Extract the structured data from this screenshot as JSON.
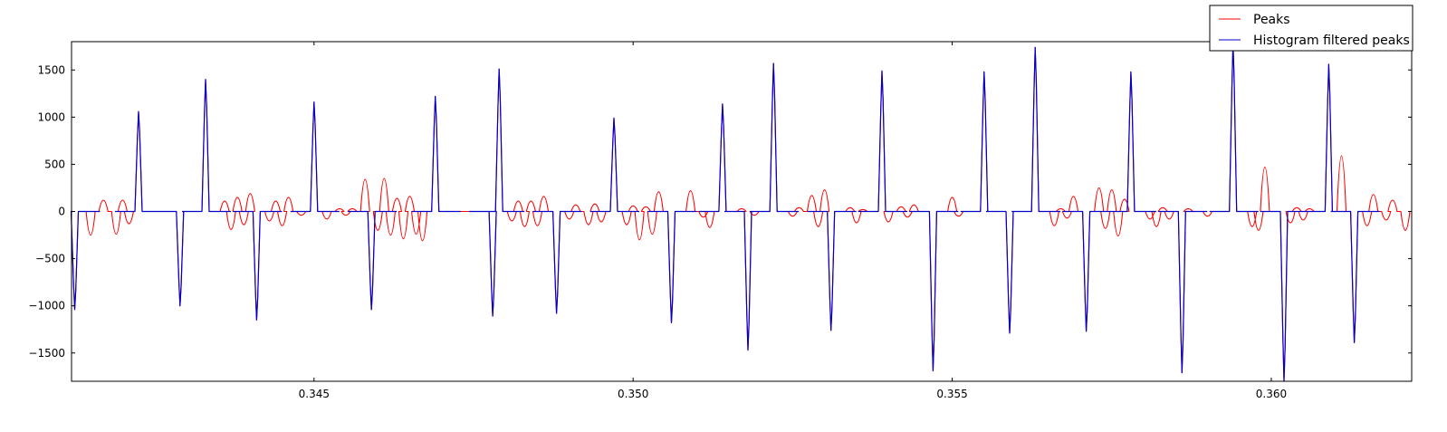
{
  "chart_data": {
    "type": "line",
    "title": "",
    "xlabel": "",
    "ylabel": "",
    "xlim": [
      0.3412,
      0.3622
    ],
    "ylim": [
      -1800,
      1800
    ],
    "x_ticks": [
      0.345,
      0.35,
      0.355,
      0.36
    ],
    "x_tick_labels": [
      "0.345",
      "0.350",
      "0.355",
      "0.360"
    ],
    "y_ticks": [
      1500,
      1000,
      500,
      0,
      -500,
      -1000,
      -1500
    ],
    "y_tick_labels": [
      "1500",
      "1000",
      "500",
      "0",
      "−500",
      "−1000",
      "−1500"
    ],
    "grid": false,
    "legend_position": "top-right",
    "colors": {
      "peaks": "#ff0000",
      "filtered": "#0000cc"
    },
    "series": [
      {
        "name": "Peaks",
        "color": "#ff0000",
        "role": "background"
      },
      {
        "name": "Histogram filtered peaks",
        "color": "#0000cc",
        "role": "foreground"
      }
    ],
    "filtered_peaks": [
      {
        "x": 0.34125,
        "y": -1040
      },
      {
        "x": 0.34225,
        "y": 1060
      },
      {
        "x": 0.3429,
        "y": -1000
      },
      {
        "x": 0.3433,
        "y": 1400
      },
      {
        "x": 0.3441,
        "y": -1150
      },
      {
        "x": 0.345,
        "y": 1160
      },
      {
        "x": 0.3459,
        "y": -1040
      },
      {
        "x": 0.3469,
        "y": 1220
      },
      {
        "x": 0.3478,
        "y": -1110
      },
      {
        "x": 0.3479,
        "y": 1510
      },
      {
        "x": 0.3488,
        "y": -1080
      },
      {
        "x": 0.3497,
        "y": 990
      },
      {
        "x": 0.3506,
        "y": -1180
      },
      {
        "x": 0.3514,
        "y": 1140
      },
      {
        "x": 0.3518,
        "y": -1470
      },
      {
        "x": 0.3522,
        "y": 1570
      },
      {
        "x": 0.3531,
        "y": -1260
      },
      {
        "x": 0.3539,
        "y": 1490
      },
      {
        "x": 0.3547,
        "y": -1690
      },
      {
        "x": 0.3555,
        "y": 1480
      },
      {
        "x": 0.3559,
        "y": -1290
      },
      {
        "x": 0.3563,
        "y": 1740
      },
      {
        "x": 0.3571,
        "y": -1270
      },
      {
        "x": 0.3578,
        "y": 1480
      },
      {
        "x": 0.3586,
        "y": -1710
      },
      {
        "x": 0.3594,
        "y": 1780
      },
      {
        "x": 0.3602,
        "y": -1800
      },
      {
        "x": 0.3609,
        "y": 1560
      },
      {
        "x": 0.3613,
        "y": -1390
      }
    ],
    "unfiltered_peaks": [
      {
        "x": 0.3415,
        "y": -250
      },
      {
        "x": 0.3417,
        "y": 120
      },
      {
        "x": 0.3419,
        "y": -240
      },
      {
        "x": 0.342,
        "y": 120
      },
      {
        "x": 0.3421,
        "y": -130
      },
      {
        "x": 0.3436,
        "y": 110
      },
      {
        "x": 0.3437,
        "y": -190
      },
      {
        "x": 0.3438,
        "y": 150
      },
      {
        "x": 0.3439,
        "y": -140
      },
      {
        "x": 0.344,
        "y": 190
      },
      {
        "x": 0.3443,
        "y": -100
      },
      {
        "x": 0.3444,
        "y": 110
      },
      {
        "x": 0.3445,
        "y": -150
      },
      {
        "x": 0.3446,
        "y": 150
      },
      {
        "x": 0.3448,
        "y": -40
      },
      {
        "x": 0.3452,
        "y": -80
      },
      {
        "x": 0.3454,
        "y": 30
      },
      {
        "x": 0.3455,
        "y": -40
      },
      {
        "x": 0.3456,
        "y": 30
      },
      {
        "x": 0.3458,
        "y": 340
      },
      {
        "x": 0.346,
        "y": -200
      },
      {
        "x": 0.3461,
        "y": 350
      },
      {
        "x": 0.3462,
        "y": -250
      },
      {
        "x": 0.3463,
        "y": 140
      },
      {
        "x": 0.3464,
        "y": -290
      },
      {
        "x": 0.3465,
        "y": 160
      },
      {
        "x": 0.3466,
        "y": -240
      },
      {
        "x": 0.3467,
        "y": -310
      },
      {
        "x": 0.3481,
        "y": -100
      },
      {
        "x": 0.3482,
        "y": 110
      },
      {
        "x": 0.3483,
        "y": -160
      },
      {
        "x": 0.3484,
        "y": 110
      },
      {
        "x": 0.3485,
        "y": -150
      },
      {
        "x": 0.3486,
        "y": 160
      },
      {
        "x": 0.349,
        "y": -80
      },
      {
        "x": 0.3491,
        "y": 70
      },
      {
        "x": 0.3493,
        "y": -140
      },
      {
        "x": 0.3494,
        "y": 80
      },
      {
        "x": 0.3495,
        "y": -110
      },
      {
        "x": 0.3499,
        "y": -140
      },
      {
        "x": 0.35,
        "y": 60
      },
      {
        "x": 0.3501,
        "y": -300
      },
      {
        "x": 0.3502,
        "y": 50
      },
      {
        "x": 0.3503,
        "y": -240
      },
      {
        "x": 0.3504,
        "y": 210
      },
      {
        "x": 0.3509,
        "y": 220
      },
      {
        "x": 0.3511,
        "y": -60
      },
      {
        "x": 0.3512,
        "y": -170
      },
      {
        "x": 0.3517,
        "y": 30
      },
      {
        "x": 0.3519,
        "y": -40
      },
      {
        "x": 0.3525,
        "y": -50
      },
      {
        "x": 0.3526,
        "y": 40
      },
      {
        "x": 0.3528,
        "y": 170
      },
      {
        "x": 0.3529,
        "y": -160
      },
      {
        "x": 0.353,
        "y": 230
      },
      {
        "x": 0.3534,
        "y": 40
      },
      {
        "x": 0.3535,
        "y": -120
      },
      {
        "x": 0.3536,
        "y": 20
      },
      {
        "x": 0.354,
        "y": -110
      },
      {
        "x": 0.3542,
        "y": 50
      },
      {
        "x": 0.3543,
        "y": -60
      },
      {
        "x": 0.3544,
        "y": 70
      },
      {
        "x": 0.355,
        "y": 150
      },
      {
        "x": 0.3551,
        "y": -50
      },
      {
        "x": 0.3566,
        "y": -150
      },
      {
        "x": 0.3567,
        "y": 30
      },
      {
        "x": 0.3568,
        "y": -70
      },
      {
        "x": 0.3569,
        "y": 160
      },
      {
        "x": 0.3573,
        "y": 250
      },
      {
        "x": 0.3574,
        "y": -180
      },
      {
        "x": 0.3575,
        "y": 230
      },
      {
        "x": 0.3576,
        "y": -260
      },
      {
        "x": 0.3577,
        "y": 130
      },
      {
        "x": 0.3581,
        "y": -80
      },
      {
        "x": 0.3582,
        "y": -160
      },
      {
        "x": 0.3583,
        "y": 40
      },
      {
        "x": 0.3584,
        "y": -80
      },
      {
        "x": 0.3587,
        "y": 30
      },
      {
        "x": 0.359,
        "y": -50
      },
      {
        "x": 0.3597,
        "y": -160
      },
      {
        "x": 0.3598,
        "y": -200
      },
      {
        "x": 0.3599,
        "y": 470
      },
      {
        "x": 0.3603,
        "y": -120
      },
      {
        "x": 0.3604,
        "y": 40
      },
      {
        "x": 0.3605,
        "y": -90
      },
      {
        "x": 0.3606,
        "y": 30
      },
      {
        "x": 0.3611,
        "y": 590
      },
      {
        "x": 0.3615,
        "y": -150
      },
      {
        "x": 0.3616,
        "y": 180
      },
      {
        "x": 0.3618,
        "y": -90
      },
      {
        "x": 0.3619,
        "y": 120
      },
      {
        "x": 0.3621,
        "y": -200
      }
    ]
  }
}
